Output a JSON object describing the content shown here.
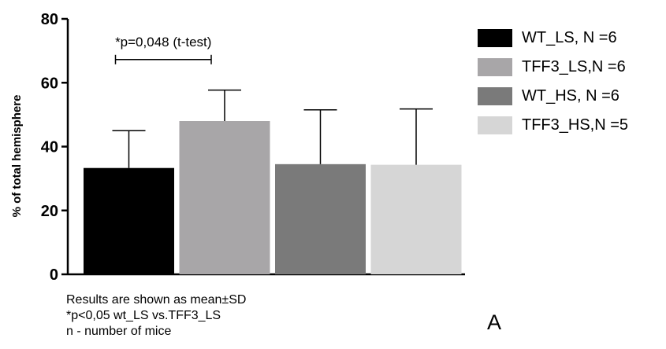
{
  "chart_data": {
    "type": "bar",
    "categories": [
      "WT_LS, N =6",
      "TFF3_LS,N =6",
      "WT_HS, N =6",
      "TFF3_HS,N =5"
    ],
    "values": [
      33.3,
      48.0,
      34.5,
      34.3
    ],
    "errors": [
      11.7,
      9.7,
      17.0,
      17.5
    ],
    "colors": [
      "#000000",
      "#a8a6a8",
      "#7a7a7a",
      "#d6d6d6"
    ],
    "ylabel": "% of total hemisphere",
    "xlabel": "",
    "ylim": [
      0,
      80
    ],
    "yticks": [
      0,
      20,
      40,
      60,
      80
    ],
    "grid": false,
    "legend_position": "right",
    "annotation": {
      "text": "*p=0,048 (t-test)",
      "between": [
        0,
        1
      ],
      "y": 67.5
    }
  },
  "notes": {
    "line1": "Results are shown as mean±SD",
    "line2": "*p<0,05 wt_LS vs.TFF3_LS",
    "line3": "n - number of mice"
  },
  "panel_letter": "A"
}
